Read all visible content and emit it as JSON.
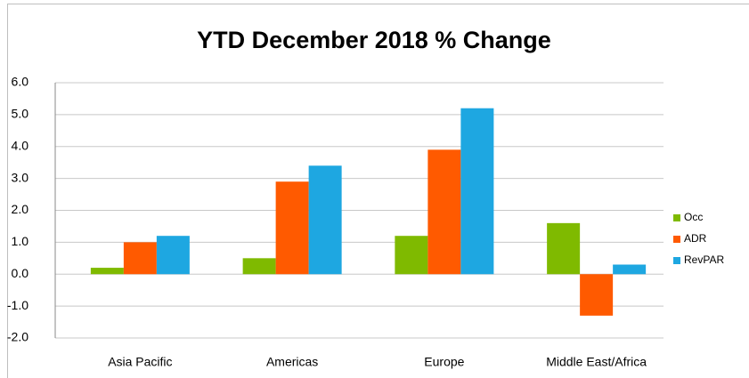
{
  "chart_data": {
    "type": "bar",
    "title": "YTD December 2018 % Change",
    "categories": [
      "Asia Pacific",
      "Americas",
      "Europe",
      "Middle East/Africa"
    ],
    "series": [
      {
        "name": "Occ",
        "color": "#7fba00",
        "values": [
          0.2,
          0.5,
          1.2,
          1.6
        ]
      },
      {
        "name": "ADR",
        "color": "#ff5a00",
        "values": [
          1.0,
          2.9,
          3.9,
          -1.3
        ]
      },
      {
        "name": "RevPAR",
        "color": "#1ea7e1",
        "values": [
          1.2,
          3.4,
          5.2,
          0.3
        ]
      }
    ],
    "ylim": [
      -2,
      6
    ],
    "yticks": [
      {
        "value": -2,
        "label": "-2.0"
      },
      {
        "value": -1,
        "label": "-1.0"
      },
      {
        "value": 0,
        "label": "0.0"
      },
      {
        "value": 1,
        "label": "1.0"
      },
      {
        "value": 2,
        "label": "2.0"
      },
      {
        "value": 3,
        "label": "3.0"
      },
      {
        "value": 4,
        "label": "4.0"
      },
      {
        "value": 5,
        "label": "5.0"
      },
      {
        "value": 6,
        "label": "6.0"
      }
    ],
    "grid": true,
    "legend": "right"
  }
}
